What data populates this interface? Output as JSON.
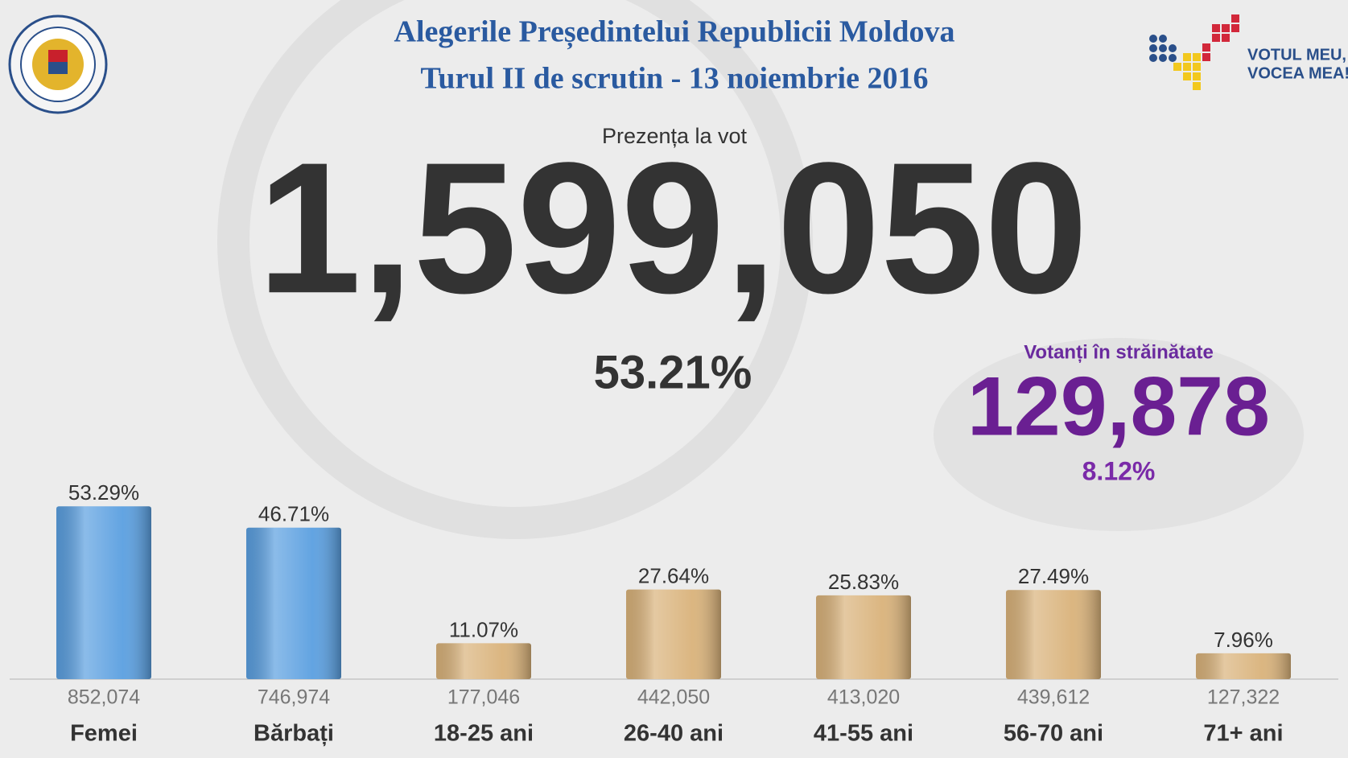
{
  "chart_data": {
    "type": "bar",
    "title": "Alegerile Președintelui Republicii Moldova",
    "subtitle": "Turul II de scrutin - 13 noiembrie 2016",
    "slogan": [
      "VOTUL MEU,",
      "VOCEA MEA!"
    ],
    "turnout_label": "Prezența la vot",
    "turnout": "1,599,050",
    "turnout_percent": "53.21%",
    "abroad_label": "Votanți în străinătate",
    "abroad": "129,878",
    "abroad_percent": "8.12%",
    "categories": [
      "Femei",
      "Bărbați",
      "18-25 ani",
      "26-40 ani",
      "41-55 ani",
      "56-70 ani",
      "71+ ani"
    ],
    "values": [
      53.29,
      46.71,
      11.07,
      27.64,
      25.83,
      27.49,
      7.96
    ],
    "value_labels": [
      "53.29%",
      "46.71%",
      "11.07%",
      "27.64%",
      "25.83%",
      "27.49%",
      "7.96%"
    ],
    "counts": [
      "852,074",
      "746,974",
      "177,046",
      "442,050",
      "413,020",
      "439,612",
      "127,322"
    ],
    "colors": [
      "#5a9fe0",
      "#5a9fe0",
      "#d9b27a",
      "#d9b27a",
      "#d9b27a",
      "#d9b27a",
      "#d9b27a"
    ],
    "ylim": [
      0,
      100
    ]
  }
}
